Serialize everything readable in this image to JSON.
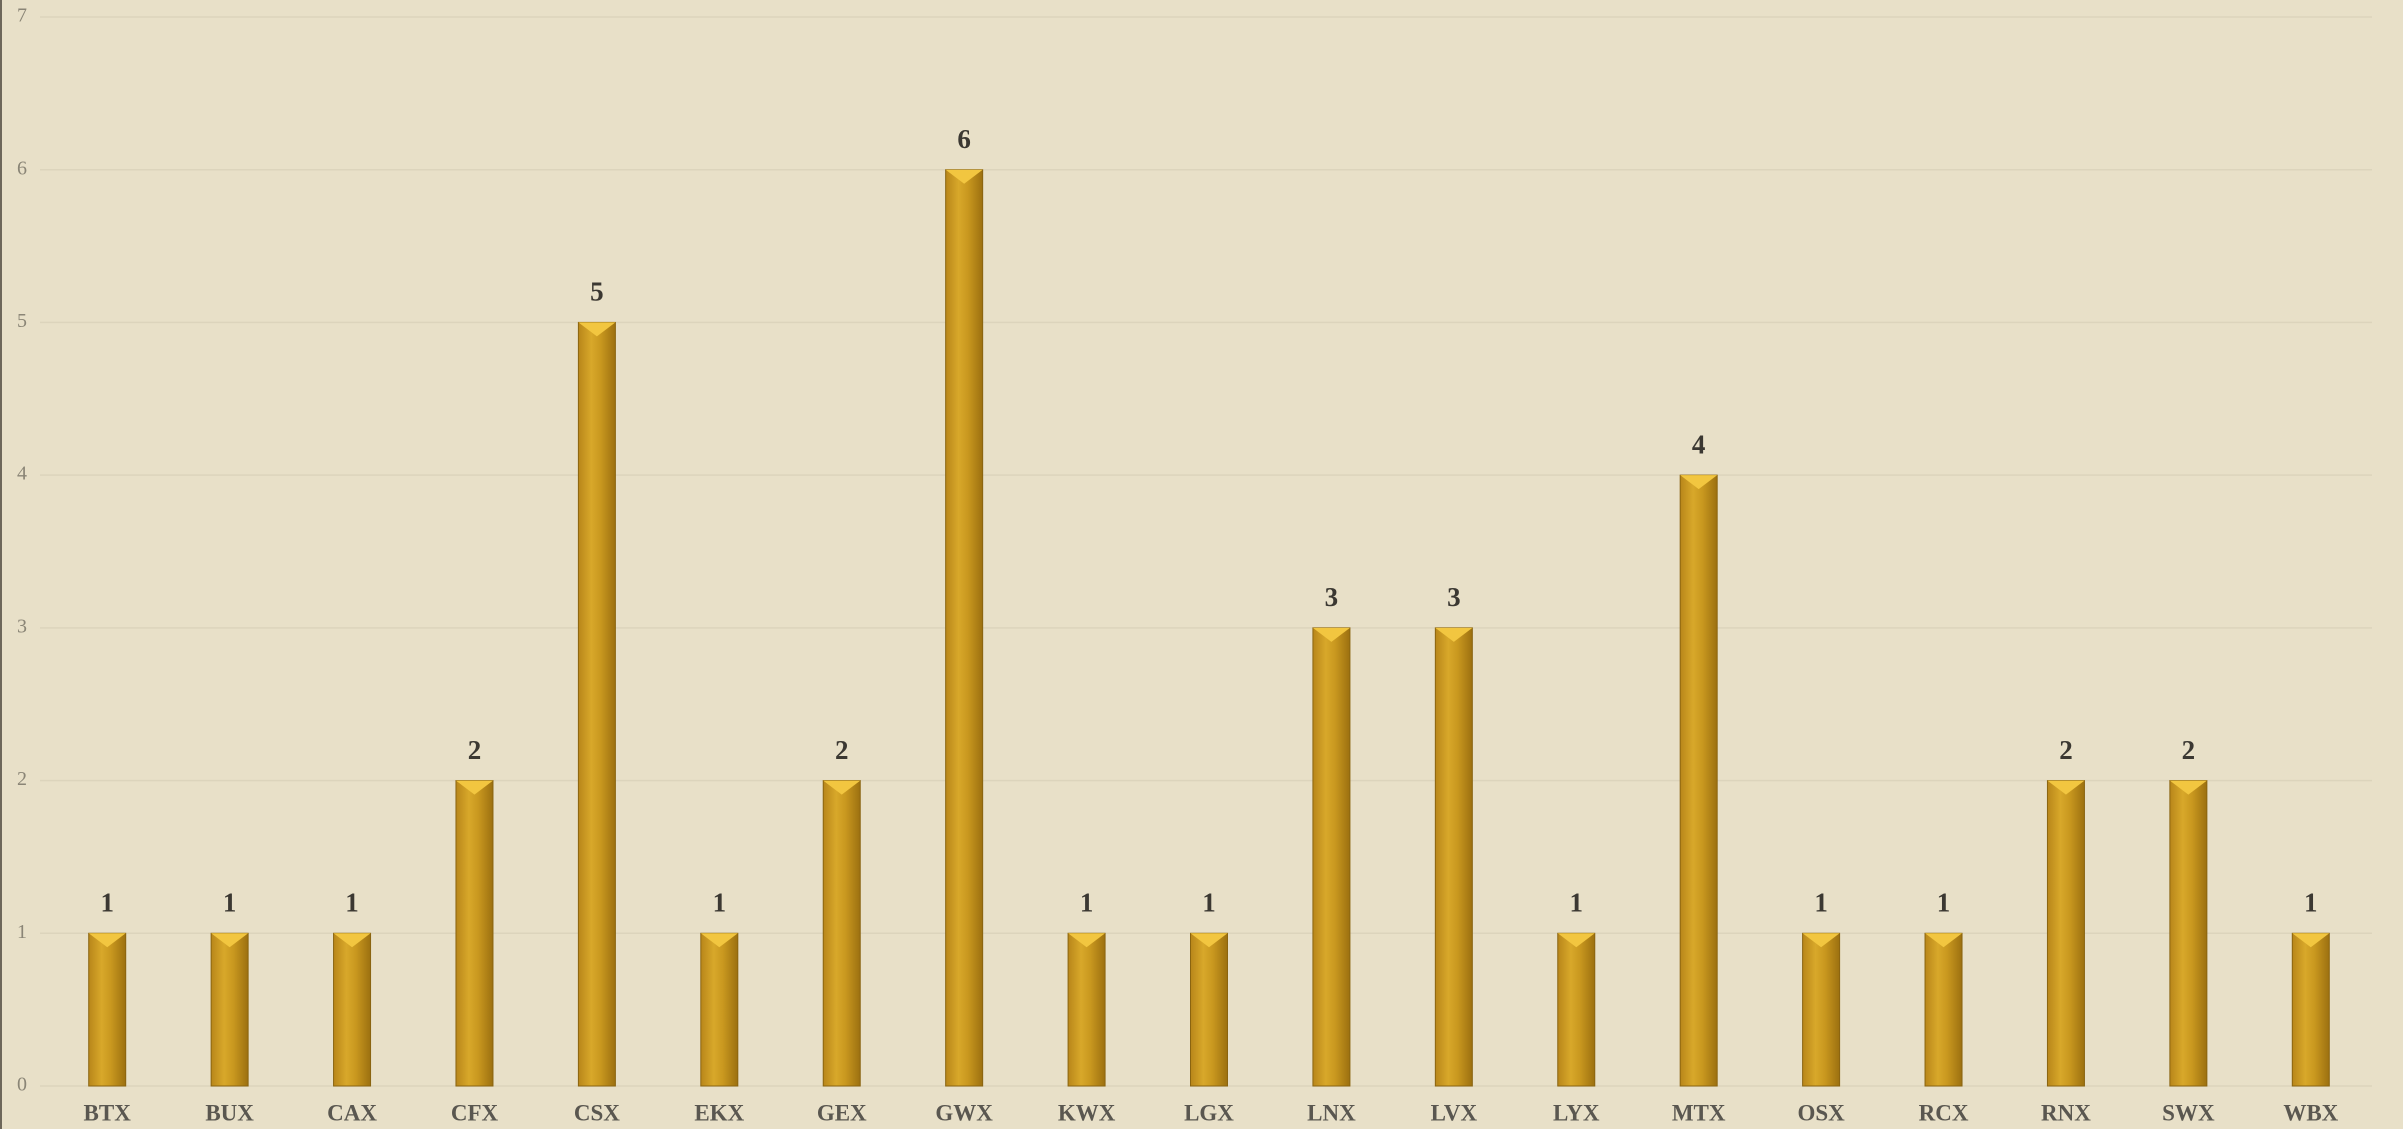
{
  "chart_data": {
    "type": "bar",
    "categories": [
      "BTX",
      "BUX",
      "CAX",
      "CFX",
      "CSX",
      "EKX",
      "GEX",
      "GWX",
      "KWX",
      "LGX",
      "LNX",
      "LVX",
      "LYX",
      "MTX",
      "OSX",
      "RCX",
      "RNX",
      "SWX",
      "WBX"
    ],
    "values": [
      1,
      1,
      1,
      2,
      5,
      1,
      2,
      6,
      1,
      1,
      3,
      3,
      1,
      4,
      1,
      1,
      2,
      2,
      1
    ],
    "color": "#c9981f",
    "ylim": [
      0,
      7
    ],
    "yticks": [
      0,
      1,
      2,
      3,
      4,
      5,
      6,
      7
    ],
    "grid": true
  }
}
